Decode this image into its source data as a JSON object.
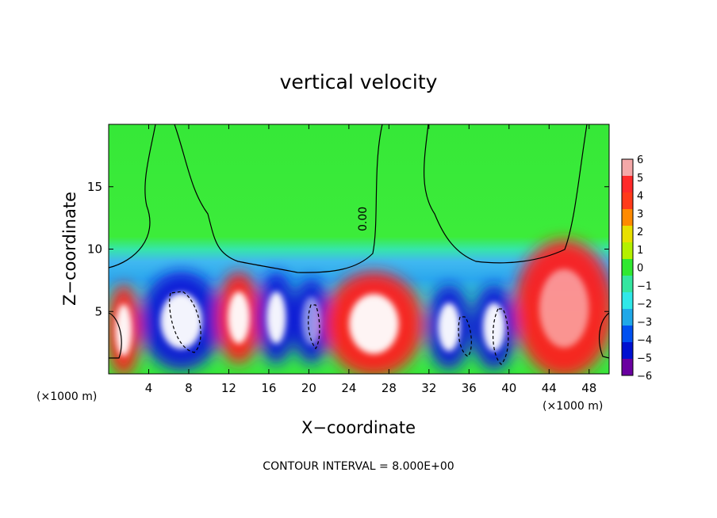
{
  "chart_data": {
    "type": "heatmap",
    "title": "vertical velocity",
    "xlabel": "X−coordinate",
    "ylabel": "Z−coordinate",
    "x_unit_left": "(×1000 m)",
    "x_unit_right": "(×1000 m)",
    "xlim": [
      0,
      50
    ],
    "ylim": [
      0,
      20
    ],
    "x_ticks": [
      4,
      8,
      12,
      16,
      20,
      24,
      28,
      32,
      36,
      40,
      44,
      48
    ],
    "x_tick_labels": [
      "4",
      "8",
      "12",
      "16",
      "20",
      "24",
      "28",
      "32",
      "36",
      "40",
      "44",
      "48"
    ],
    "y_ticks": [
      5,
      10,
      15
    ],
    "y_tick_labels": [
      "5",
      "10",
      "15"
    ],
    "contour_label": "0.00",
    "footer": "CONTOUR INTERVAL = 8.000E+00",
    "colorbar": {
      "ticks": [
        6,
        5,
        4,
        3,
        2,
        1,
        0,
        -1,
        -2,
        -3,
        -4,
        -5,
        -6
      ],
      "tick_labels": [
        "6",
        "5",
        "4",
        "3",
        "2",
        "1",
        "0",
        "−1",
        "−2",
        "−3",
        "−4",
        "−5",
        "−6"
      ],
      "colors": [
        "#f4a8a8",
        "#ff2a2a",
        "#ff3a1a",
        "#ff8a00",
        "#e8e000",
        "#b4f000",
        "#30e830",
        "#34e6a0",
        "#30e8e8",
        "#20a8e8",
        "#0050f0",
        "#0010d0",
        "#6a00a0"
      ]
    },
    "cells": [
      {
        "x": [
          0,
          3
        ],
        "z": [
          0,
          7
        ],
        "w": 5
      },
      {
        "x": [
          3.5,
          11
        ],
        "z": [
          0.5,
          8
        ],
        "w": -5.5
      },
      {
        "x": [
          11,
          15
        ],
        "z": [
          1,
          8
        ],
        "w": 5
      },
      {
        "x": [
          15,
          18.5
        ],
        "z": [
          1,
          8
        ],
        "w": -5
      },
      {
        "x": [
          18.5,
          22
        ],
        "z": [
          1,
          7.5
        ],
        "w": -4.5
      },
      {
        "x": [
          22,
          31
        ],
        "z": [
          0,
          8
        ],
        "w": 5
      },
      {
        "x": [
          32,
          36
        ],
        "z": [
          0.5,
          7
        ],
        "w": -5
      },
      {
        "x": [
          36.5,
          40.5
        ],
        "z": [
          0.5,
          7
        ],
        "w": -5.5
      },
      {
        "x": [
          41,
          50
        ],
        "z": [
          0,
          10.5
        ],
        "w": 4.5
      }
    ]
  }
}
